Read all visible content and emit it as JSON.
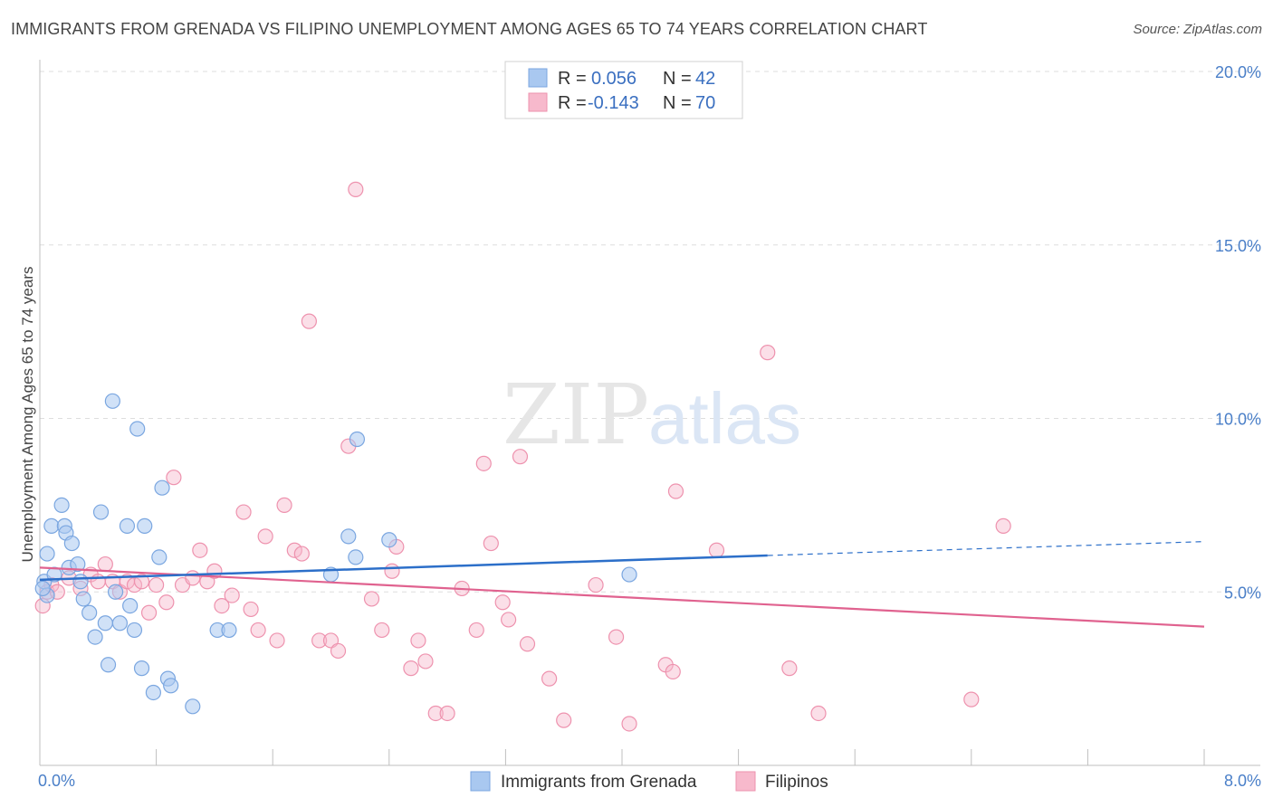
{
  "title": "IMMIGRANTS FROM GRENADA VS FILIPINO UNEMPLOYMENT AMONG AGES 65 TO 74 YEARS CORRELATION CHART",
  "source": "Source: ZipAtlas.com",
  "watermark": {
    "zip": "ZIP",
    "atlas": "atlas"
  },
  "colors": {
    "blue_fill": "#a9c8f0",
    "blue_stroke": "#7aa6e0",
    "blue_line": "#2c6fc9",
    "pink_fill": "#f7b9cc",
    "pink_stroke": "#ee92ae",
    "pink_line": "#e0628f",
    "tick_text": "#4a7fc8"
  },
  "legend": {
    "rows": [
      {
        "r_label": "R =",
        "r_value": "0.056",
        "n_label": "N =",
        "n_value": "42"
      },
      {
        "r_label": "R =",
        "r_value": "-0.143",
        "n_label": "N =",
        "n_value": "70"
      }
    ]
  },
  "bottom_legend": [
    "Immigrants from Grenada",
    "Filipinos"
  ],
  "chart_data": {
    "type": "scatter",
    "title": "IMMIGRANTS FROM GRENADA VS FILIPINO UNEMPLOYMENT AMONG AGES 65 TO 74 YEARS CORRELATION CHART",
    "xlabel": "",
    "ylabel": "Unemployment Among Ages 65 to 74 years",
    "xlim": [
      0,
      8
    ],
    "ylim": [
      0,
      20
    ],
    "x_tick_labels": [
      "0.0%",
      "8.0%"
    ],
    "y_ticks": [
      5,
      10,
      15,
      20
    ],
    "y_tick_labels": [
      "5.0%",
      "10.0%",
      "15.0%",
      "20.0%"
    ],
    "grid": true,
    "series": [
      {
        "name": "Immigrants from Grenada",
        "r": 0.056,
        "n": 42,
        "trend": {
          "x0": 0.0,
          "y0": 5.35,
          "x1": 5.0,
          "y1": 6.05,
          "dashed_to_x": 8.0,
          "dashed_to_y": 6.45
        },
        "points": [
          [
            0.03,
            5.3
          ],
          [
            0.05,
            6.1
          ],
          [
            0.05,
            4.9
          ],
          [
            0.08,
            6.9
          ],
          [
            0.1,
            5.5
          ],
          [
            0.15,
            7.5
          ],
          [
            0.17,
            6.9
          ],
          [
            0.18,
            6.7
          ],
          [
            0.22,
            6.4
          ],
          [
            0.2,
            5.7
          ],
          [
            0.26,
            5.8
          ],
          [
            0.28,
            5.3
          ],
          [
            0.3,
            4.8
          ],
          [
            0.34,
            4.4
          ],
          [
            0.38,
            3.7
          ],
          [
            0.42,
            7.3
          ],
          [
            0.45,
            4.1
          ],
          [
            0.47,
            2.9
          ],
          [
            0.5,
            10.5
          ],
          [
            0.52,
            5.0
          ],
          [
            0.55,
            4.1
          ],
          [
            0.6,
            6.9
          ],
          [
            0.62,
            4.6
          ],
          [
            0.65,
            3.9
          ],
          [
            0.67,
            9.7
          ],
          [
            0.7,
            2.8
          ],
          [
            0.72,
            6.9
          ],
          [
            0.78,
            2.1
          ],
          [
            0.82,
            6.0
          ],
          [
            0.84,
            8.0
          ],
          [
            0.88,
            2.5
          ],
          [
            0.9,
            2.3
          ],
          [
            1.05,
            1.7
          ],
          [
            1.22,
            3.9
          ],
          [
            1.3,
            3.9
          ],
          [
            2.0,
            5.5
          ],
          [
            2.12,
            6.6
          ],
          [
            2.17,
            6.0
          ],
          [
            2.18,
            9.4
          ],
          [
            2.4,
            6.5
          ],
          [
            4.05,
            5.5
          ],
          [
            0.02,
            5.1
          ]
        ]
      },
      {
        "name": "Filipinos",
        "r": -0.143,
        "n": 70,
        "trend": {
          "x0": 0.0,
          "y0": 5.7,
          "x1": 8.0,
          "y1": 4.0
        },
        "points": [
          [
            0.02,
            4.6
          ],
          [
            0.05,
            5.0
          ],
          [
            0.08,
            5.2
          ],
          [
            0.12,
            5.0
          ],
          [
            0.2,
            5.4
          ],
          [
            0.28,
            5.1
          ],
          [
            0.35,
            5.5
          ],
          [
            0.4,
            5.3
          ],
          [
            0.45,
            5.8
          ],
          [
            0.5,
            5.3
          ],
          [
            0.55,
            5.0
          ],
          [
            0.6,
            5.3
          ],
          [
            0.65,
            5.2
          ],
          [
            0.7,
            5.3
          ],
          [
            0.75,
            4.4
          ],
          [
            0.8,
            5.2
          ],
          [
            0.87,
            4.7
          ],
          [
            0.92,
            8.3
          ],
          [
            0.98,
            5.2
          ],
          [
            1.05,
            5.4
          ],
          [
            1.1,
            6.2
          ],
          [
            1.15,
            5.3
          ],
          [
            1.2,
            5.6
          ],
          [
            1.25,
            4.6
          ],
          [
            1.32,
            4.9
          ],
          [
            1.4,
            7.3
          ],
          [
            1.45,
            4.5
          ],
          [
            1.5,
            3.9
          ],
          [
            1.55,
            6.6
          ],
          [
            1.63,
            3.6
          ],
          [
            1.68,
            7.5
          ],
          [
            1.75,
            6.2
          ],
          [
            1.8,
            6.1
          ],
          [
            1.85,
            12.8
          ],
          [
            1.92,
            3.6
          ],
          [
            2.0,
            3.6
          ],
          [
            2.05,
            3.3
          ],
          [
            2.12,
            9.2
          ],
          [
            2.17,
            16.6
          ],
          [
            2.28,
            4.8
          ],
          [
            2.35,
            3.9
          ],
          [
            2.42,
            5.6
          ],
          [
            2.45,
            6.3
          ],
          [
            2.55,
            2.8
          ],
          [
            2.6,
            3.6
          ],
          [
            2.65,
            3.0
          ],
          [
            2.72,
            1.5
          ],
          [
            2.8,
            1.5
          ],
          [
            2.9,
            5.1
          ],
          [
            3.0,
            3.9
          ],
          [
            3.05,
            8.7
          ],
          [
            3.1,
            6.4
          ],
          [
            3.18,
            4.7
          ],
          [
            3.22,
            4.2
          ],
          [
            3.3,
            8.9
          ],
          [
            3.35,
            3.5
          ],
          [
            3.5,
            2.5
          ],
          [
            3.6,
            1.3
          ],
          [
            3.82,
            5.2
          ],
          [
            3.96,
            3.7
          ],
          [
            4.05,
            1.2
          ],
          [
            4.3,
            2.9
          ],
          [
            4.35,
            2.7
          ],
          [
            4.37,
            7.9
          ],
          [
            4.65,
            6.2
          ],
          [
            5.0,
            11.9
          ],
          [
            5.15,
            2.8
          ],
          [
            5.35,
            1.5
          ],
          [
            6.4,
            1.9
          ],
          [
            6.62,
            6.9
          ]
        ]
      }
    ]
  }
}
